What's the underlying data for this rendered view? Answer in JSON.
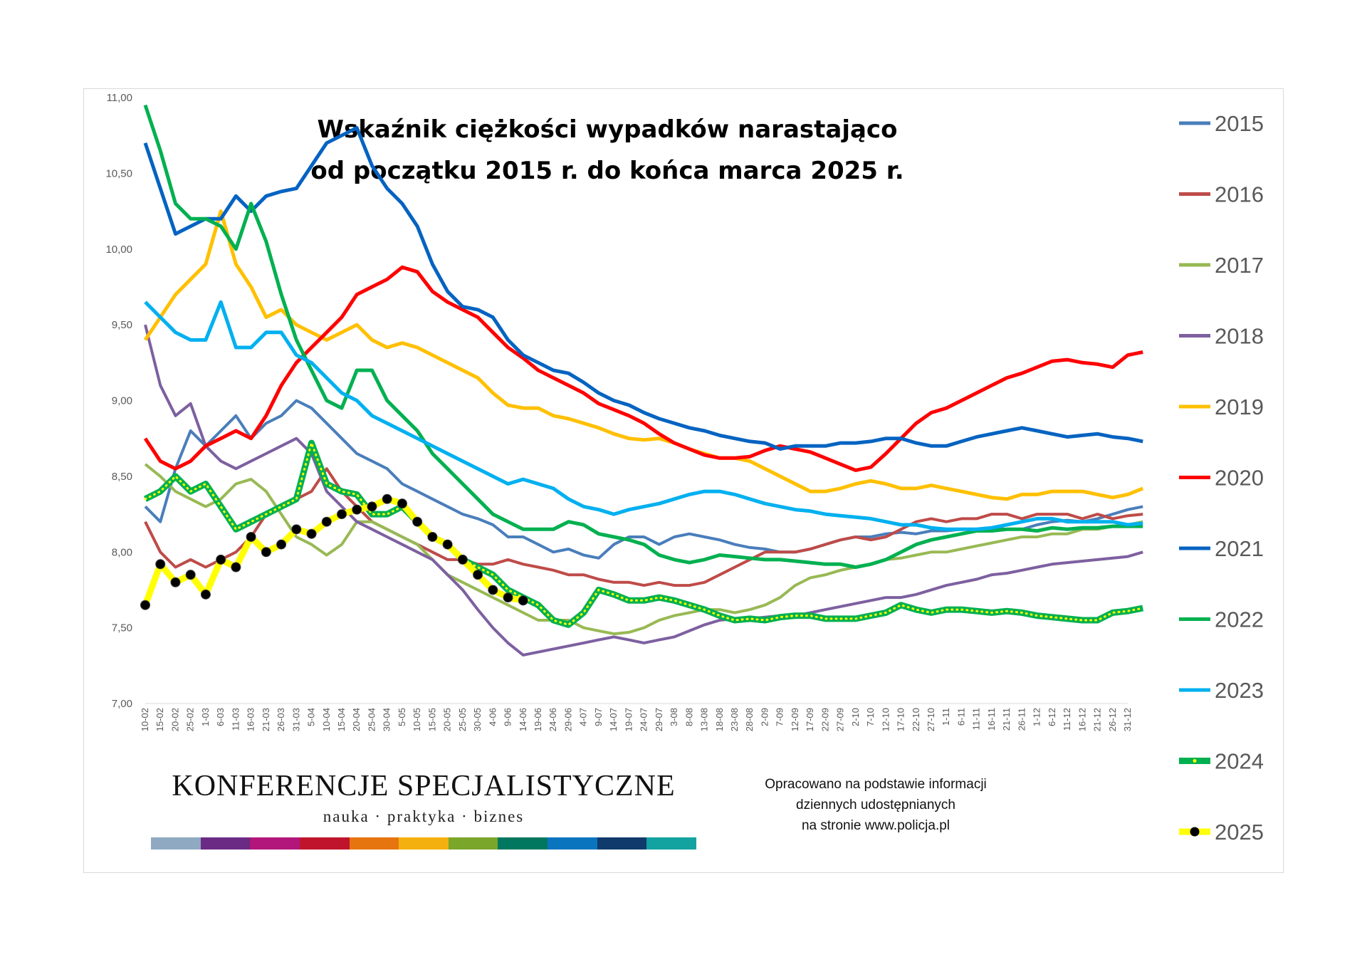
{
  "chart_data": {
    "type": "line",
    "title_lines": [
      "Wskaźnik ciężkości wypadków narastająco",
      "od początku 2015 r. do końca marca 2025 r."
    ],
    "xlabel": "",
    "ylabel": "",
    "ylim": [
      7.0,
      11.0
    ],
    "y_ticks": [
      "7,00",
      "7,50",
      "8,00",
      "8,50",
      "9,00",
      "9,50",
      "10,00",
      "10,50",
      "11,00"
    ],
    "x_tick_labels": [
      "10-02",
      "15-02",
      "20-02",
      "25-02",
      "1-03",
      "6-03",
      "11-03",
      "16-03",
      "21-03",
      "26-03",
      "31-03",
      "5-04",
      "10-04",
      "15-04",
      "20-04",
      "25-04",
      "30-04",
      "5-05",
      "10-05",
      "15-05",
      "20-05",
      "25-05",
      "30-05",
      "4-06",
      "9-06",
      "14-06",
      "19-06",
      "24-06",
      "29-06",
      "4-07",
      "9-07",
      "14-07",
      "19-07",
      "24-07",
      "29-07",
      "3-08",
      "8-08",
      "13-08",
      "18-08",
      "23-08",
      "28-08",
      "2-09",
      "7-09",
      "12-09",
      "17-09",
      "22-09",
      "27-09",
      "2-10",
      "7-10",
      "12-10",
      "17-10",
      "22-10",
      "27-10",
      "1-11",
      "6-11",
      "11-11",
      "16-11",
      "21-11",
      "26-11",
      "1-12",
      "6-12",
      "11-12",
      "16-12",
      "21-12",
      "26-12",
      "31-12"
    ],
    "grid": false,
    "legend_position": "right",
    "series": [
      {
        "name": "2015",
        "color": "#4a7ebb",
        "values": [
          8.3,
          8.2,
          8.55,
          8.8,
          8.7,
          8.8,
          8.9,
          8.75,
          8.85,
          8.9,
          9.0,
          8.95,
          8.85,
          8.75,
          8.65,
          8.6,
          8.55,
          8.45,
          8.4,
          8.35,
          8.3,
          8.25,
          8.22,
          8.18,
          8.1,
          8.1,
          8.05,
          8.0,
          8.02,
          7.98,
          7.96,
          8.05,
          8.1,
          8.1,
          8.05,
          8.1,
          8.12,
          8.1,
          8.08,
          8.05,
          8.03,
          8.02,
          8.0,
          8.0,
          8.02,
          8.05,
          8.08,
          8.1,
          8.1,
          8.12,
          8.13,
          8.12,
          8.14,
          8.14,
          8.15,
          8.15,
          8.16,
          8.15,
          8.15,
          8.18,
          8.2,
          8.21,
          8.2,
          8.22,
          8.25,
          8.28,
          8.3
        ]
      },
      {
        "name": "2016",
        "color": "#be4b48",
        "values": [
          8.2,
          8.0,
          7.9,
          7.95,
          7.9,
          7.95,
          8.0,
          8.1,
          8.25,
          8.3,
          8.35,
          8.4,
          8.55,
          8.4,
          8.3,
          8.2,
          8.15,
          8.1,
          8.05,
          8.0,
          7.95,
          7.95,
          7.92,
          7.92,
          7.95,
          7.92,
          7.9,
          7.88,
          7.85,
          7.85,
          7.82,
          7.8,
          7.8,
          7.78,
          7.8,
          7.78,
          7.78,
          7.8,
          7.85,
          7.9,
          7.95,
          8.0,
          8.0,
          8.0,
          8.02,
          8.05,
          8.08,
          8.1,
          8.08,
          8.1,
          8.15,
          8.2,
          8.22,
          8.2,
          8.22,
          8.22,
          8.25,
          8.25,
          8.22,
          8.25,
          8.25,
          8.25,
          8.22,
          8.25,
          8.22,
          8.24,
          8.25
        ]
      },
      {
        "name": "2017",
        "color": "#98b954",
        "values": [
          8.58,
          8.5,
          8.4,
          8.35,
          8.3,
          8.35,
          8.45,
          8.48,
          8.4,
          8.25,
          8.1,
          8.05,
          7.98,
          8.05,
          8.2,
          8.2,
          8.15,
          8.1,
          8.05,
          7.95,
          7.85,
          7.8,
          7.75,
          7.7,
          7.65,
          7.6,
          7.55,
          7.55,
          7.55,
          7.5,
          7.48,
          7.46,
          7.47,
          7.5,
          7.55,
          7.58,
          7.6,
          7.62,
          7.62,
          7.6,
          7.62,
          7.65,
          7.7,
          7.78,
          7.83,
          7.85,
          7.88,
          7.9,
          7.92,
          7.95,
          7.96,
          7.98,
          8.0,
          8.0,
          8.02,
          8.04,
          8.06,
          8.08,
          8.1,
          8.1,
          8.12,
          8.12,
          8.15,
          8.15,
          8.17,
          8.18,
          8.2
        ]
      },
      {
        "name": "2018",
        "color": "#7d60a0",
        "values": [
          9.5,
          9.1,
          8.9,
          8.98,
          8.7,
          8.6,
          8.55,
          8.6,
          8.65,
          8.7,
          8.75,
          8.65,
          8.4,
          8.3,
          8.2,
          8.15,
          8.1,
          8.05,
          8.0,
          7.95,
          7.85,
          7.75,
          7.62,
          7.5,
          7.4,
          7.32,
          7.34,
          7.36,
          7.38,
          7.4,
          7.42,
          7.44,
          7.42,
          7.4,
          7.42,
          7.44,
          7.48,
          7.52,
          7.55,
          7.56,
          7.56,
          7.57,
          7.58,
          7.58,
          7.6,
          7.62,
          7.64,
          7.66,
          7.68,
          7.7,
          7.7,
          7.72,
          7.75,
          7.78,
          7.8,
          7.82,
          7.85,
          7.86,
          7.88,
          7.9,
          7.92,
          7.93,
          7.94,
          7.95,
          7.96,
          7.97,
          8.0
        ]
      },
      {
        "name": "2019",
        "color": "#ffc000",
        "values": [
          9.4,
          9.55,
          9.7,
          9.8,
          9.9,
          10.25,
          9.9,
          9.75,
          9.55,
          9.6,
          9.5,
          9.45,
          9.4,
          9.45,
          9.5,
          9.4,
          9.35,
          9.38,
          9.35,
          9.3,
          9.25,
          9.2,
          9.15,
          9.05,
          8.97,
          8.95,
          8.95,
          8.9,
          8.88,
          8.85,
          8.82,
          8.78,
          8.75,
          8.74,
          8.75,
          8.72,
          8.68,
          8.65,
          8.62,
          8.62,
          8.6,
          8.55,
          8.5,
          8.45,
          8.4,
          8.4,
          8.42,
          8.45,
          8.47,
          8.45,
          8.42,
          8.42,
          8.44,
          8.42,
          8.4,
          8.38,
          8.36,
          8.35,
          8.38,
          8.38,
          8.4,
          8.4,
          8.4,
          8.38,
          8.36,
          8.38,
          8.42
        ]
      },
      {
        "name": "2020",
        "color": "#ff0000",
        "values": [
          8.75,
          8.6,
          8.55,
          8.6,
          8.7,
          8.75,
          8.8,
          8.75,
          8.9,
          9.1,
          9.25,
          9.35,
          9.45,
          9.55,
          9.7,
          9.75,
          9.8,
          9.88,
          9.85,
          9.72,
          9.65,
          9.6,
          9.55,
          9.45,
          9.35,
          9.28,
          9.2,
          9.15,
          9.1,
          9.05,
          8.98,
          8.94,
          8.9,
          8.85,
          8.78,
          8.72,
          8.68,
          8.64,
          8.62,
          8.62,
          8.63,
          8.67,
          8.7,
          8.68,
          8.66,
          8.62,
          8.58,
          8.54,
          8.56,
          8.65,
          8.75,
          8.85,
          8.92,
          8.95,
          9.0,
          9.05,
          9.1,
          9.15,
          9.18,
          9.22,
          9.26,
          9.27,
          9.25,
          9.24,
          9.22,
          9.3,
          9.32
        ]
      },
      {
        "name": "2021",
        "color": "#0563c1",
        "values": [
          10.7,
          10.4,
          10.1,
          10.15,
          10.2,
          10.2,
          10.35,
          10.25,
          10.35,
          10.38,
          10.4,
          10.55,
          10.7,
          10.75,
          10.8,
          10.55,
          10.4,
          10.3,
          10.15,
          9.9,
          9.72,
          9.62,
          9.6,
          9.55,
          9.4,
          9.3,
          9.25,
          9.2,
          9.18,
          9.12,
          9.05,
          9.0,
          8.97,
          8.92,
          8.88,
          8.85,
          8.82,
          8.8,
          8.77,
          8.75,
          8.73,
          8.72,
          8.68,
          8.7,
          8.7,
          8.7,
          8.72,
          8.72,
          8.73,
          8.75,
          8.75,
          8.72,
          8.7,
          8.7,
          8.73,
          8.76,
          8.78,
          8.8,
          8.82,
          8.8,
          8.78,
          8.76,
          8.77,
          8.78,
          8.76,
          8.75,
          8.73
        ]
      },
      {
        "name": "2022",
        "color": "#00b050",
        "values": [
          10.95,
          10.65,
          10.3,
          10.2,
          10.2,
          10.15,
          10.0,
          10.3,
          10.05,
          9.7,
          9.4,
          9.2,
          9.0,
          8.95,
          9.2,
          9.2,
          9.0,
          8.9,
          8.8,
          8.65,
          8.55,
          8.45,
          8.35,
          8.25,
          8.2,
          8.15,
          8.15,
          8.15,
          8.2,
          8.18,
          8.12,
          8.1,
          8.08,
          8.05,
          7.98,
          7.95,
          7.93,
          7.95,
          7.98,
          7.97,
          7.96,
          7.95,
          7.95,
          7.94,
          7.93,
          7.92,
          7.92,
          7.9,
          7.92,
          7.95,
          8.0,
          8.05,
          8.08,
          8.1,
          8.12,
          8.14,
          8.14,
          8.15,
          8.15,
          8.14,
          8.16,
          8.15,
          8.16,
          8.16,
          8.17,
          8.17,
          8.17
        ]
      },
      {
        "name": "2023",
        "color": "#00b0f0",
        "values": [
          9.65,
          9.55,
          9.45,
          9.4,
          9.4,
          9.65,
          9.35,
          9.35,
          9.45,
          9.45,
          9.3,
          9.25,
          9.15,
          9.05,
          9.0,
          8.9,
          8.85,
          8.8,
          8.75,
          8.7,
          8.65,
          8.6,
          8.55,
          8.5,
          8.45,
          8.48,
          8.45,
          8.42,
          8.35,
          8.3,
          8.28,
          8.25,
          8.28,
          8.3,
          8.32,
          8.35,
          8.38,
          8.4,
          8.4,
          8.38,
          8.35,
          8.32,
          8.3,
          8.28,
          8.27,
          8.25,
          8.24,
          8.23,
          8.22,
          8.2,
          8.18,
          8.18,
          8.16,
          8.15,
          8.15,
          8.15,
          8.16,
          8.18,
          8.2,
          8.22,
          8.22,
          8.2,
          8.2,
          8.2,
          8.2,
          8.18,
          8.19
        ]
      },
      {
        "name": "2024",
        "color": "#00b050",
        "values": [
          8.35,
          8.4,
          8.5,
          8.4,
          8.45,
          8.3,
          8.15,
          8.2,
          8.25,
          8.3,
          8.35,
          8.72,
          8.45,
          8.4,
          8.38,
          8.25,
          8.25,
          8.3,
          8.2,
          8.1,
          8.05,
          7.95,
          7.9,
          7.85,
          7.75,
          7.7,
          7.65,
          7.55,
          7.52,
          7.6,
          7.75,
          7.72,
          7.68,
          7.68,
          7.7,
          7.68,
          7.65,
          7.62,
          7.58,
          7.55,
          7.56,
          7.55,
          7.57,
          7.58,
          7.58,
          7.56,
          7.56,
          7.56,
          7.58,
          7.6,
          7.65,
          7.62,
          7.6,
          7.62,
          7.62,
          7.61,
          7.6,
          7.61,
          7.6,
          7.58,
          7.57,
          7.56,
          7.55,
          7.55,
          7.6,
          7.61,
          7.63
        ]
      },
      {
        "name": "2025",
        "color": "#ffff00",
        "values": [
          7.65,
          7.92,
          7.8,
          7.85,
          7.72,
          7.95,
          7.9,
          8.1,
          8.0,
          8.05,
          8.15,
          8.12,
          8.2,
          8.25,
          8.28,
          8.3,
          8.35,
          8.32,
          8.2,
          8.1,
          8.05,
          7.95,
          7.85,
          7.75,
          7.7,
          7.68
        ]
      }
    ]
  },
  "legend": {
    "entries": [
      {
        "label": "2015",
        "color": "#4a7ebb",
        "style": "line"
      },
      {
        "label": "2016",
        "color": "#be4b48",
        "style": "line"
      },
      {
        "label": "2017",
        "color": "#98b954",
        "style": "line"
      },
      {
        "label": "2018",
        "color": "#7d60a0",
        "style": "line"
      },
      {
        "label": "2019",
        "color": "#ffc000",
        "style": "line"
      },
      {
        "label": "2020",
        "color": "#ff0000",
        "style": "line"
      },
      {
        "label": "2021",
        "color": "#0563c1",
        "style": "line"
      },
      {
        "label": "2022",
        "color": "#00b050",
        "style": "line"
      },
      {
        "label": "2023",
        "color": "#00b0f0",
        "style": "line"
      },
      {
        "label": "2024",
        "color": "#00b050",
        "style": "dotted-marker"
      },
      {
        "label": "2025",
        "color": "#ffff00",
        "style": "black-marker"
      }
    ]
  },
  "branding": {
    "name": "KONFERENCJE SPECJALISTYCZNE",
    "tagline": "nauka · praktyka · biznes",
    "bar_colors": [
      "#8ea9c1",
      "#6b2a84",
      "#b2167a",
      "#c0142c",
      "#e6750f",
      "#f4b00e",
      "#7aa62a",
      "#00775e",
      "#0a74bf",
      "#0f3a6b",
      "#12a2a0"
    ]
  },
  "source_note": [
    "Opracowano na podstawie informacji",
    "dziennych udostępnianych",
    "na stronie www.policja.pl"
  ]
}
